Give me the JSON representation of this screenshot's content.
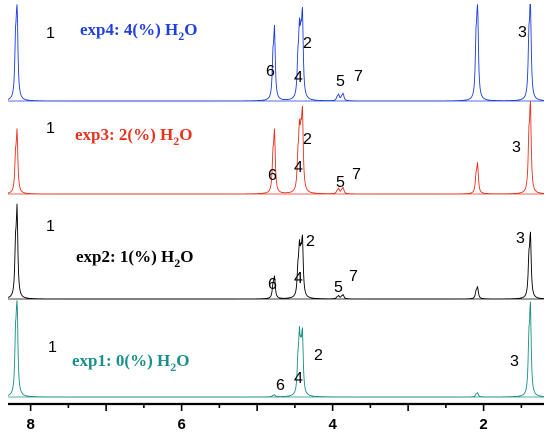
{
  "chart_data": {
    "type": "line",
    "title": "",
    "xlabel": "",
    "ylabel": "",
    "xlim": [
      8.3,
      1.2
    ],
    "x_reversed": true,
    "x_ticks": [
      8,
      6,
      4,
      2
    ],
    "x_tick_labels": [
      "8",
      "6",
      "4",
      "2"
    ],
    "grid": false,
    "series": [
      {
        "name": "exp4: 4(%) H2O",
        "title_main": "exp4: 4(%) H",
        "title_sub": "2",
        "title_tail": "O",
        "color": "#1f3fe0",
        "peaks": [
          {
            "ppm": 8.18,
            "height": 1.0,
            "label": "1"
          },
          {
            "ppm": 4.77,
            "height": 0.72,
            "label": "6"
          },
          {
            "ppm": 4.44,
            "height": 0.62,
            "label": "4"
          },
          {
            "ppm": 4.4,
            "height": 0.85,
            "label": "2"
          },
          {
            "ppm": 3.92,
            "height": 0.06,
            "label": "5"
          },
          {
            "ppm": 3.86,
            "height": 0.07,
            "label": "7"
          },
          {
            "ppm": 2.08,
            "height": 1.0,
            "label": ""
          },
          {
            "ppm": 1.38,
            "height": 1.0,
            "label": "3"
          }
        ]
      },
      {
        "name": "exp3: 2(%) H2O",
        "title_main": "exp3: 2(%) H",
        "title_sub": "2",
        "title_tail": "O",
        "color": "#e8321e",
        "peaks": [
          {
            "ppm": 8.18,
            "height": 0.62,
            "label": "1"
          },
          {
            "ppm": 4.77,
            "height": 0.62,
            "label": "6"
          },
          {
            "ppm": 4.44,
            "height": 0.55,
            "label": "4"
          },
          {
            "ppm": 4.4,
            "height": 0.8,
            "label": "2"
          },
          {
            "ppm": 3.92,
            "height": 0.05,
            "label": "5"
          },
          {
            "ppm": 3.86,
            "height": 0.06,
            "label": "7"
          },
          {
            "ppm": 2.08,
            "height": 0.3,
            "label": ""
          },
          {
            "ppm": 1.38,
            "height": 0.9,
            "label": "3"
          }
        ]
      },
      {
        "name": "exp2: 1(%) H2O",
        "title_main": "exp2: 1(%) H",
        "title_sub": "2",
        "title_tail": "O",
        "color": "#000000",
        "peaks": [
          {
            "ppm": 8.18,
            "height": 0.9,
            "label": "1"
          },
          {
            "ppm": 4.77,
            "height": 0.22,
            "label": "6"
          },
          {
            "ppm": 4.44,
            "height": 0.45,
            "label": "4"
          },
          {
            "ppm": 4.4,
            "height": 0.58,
            "label": "2"
          },
          {
            "ppm": 3.92,
            "height": 0.03,
            "label": "5"
          },
          {
            "ppm": 3.86,
            "height": 0.04,
            "label": "7"
          },
          {
            "ppm": 2.08,
            "height": 0.12,
            "label": ""
          },
          {
            "ppm": 1.38,
            "height": 0.65,
            "label": "3"
          }
        ]
      },
      {
        "name": "exp1: 0(%) H2O",
        "title_main": "exp1: 0(%) H",
        "title_sub": "2",
        "title_tail": "O",
        "color": "#1a8f8a",
        "peaks": [
          {
            "ppm": 8.18,
            "height": 1.0,
            "label": "1"
          },
          {
            "ppm": 4.77,
            "height": 0.02,
            "label": "6"
          },
          {
            "ppm": 4.44,
            "height": 0.55,
            "label": "4"
          },
          {
            "ppm": 4.4,
            "height": 0.62,
            "label": "2"
          },
          {
            "ppm": 2.08,
            "height": 0.04,
            "label": ""
          },
          {
            "ppm": 1.38,
            "height": 0.92,
            "label": "3"
          }
        ]
      }
    ]
  }
}
